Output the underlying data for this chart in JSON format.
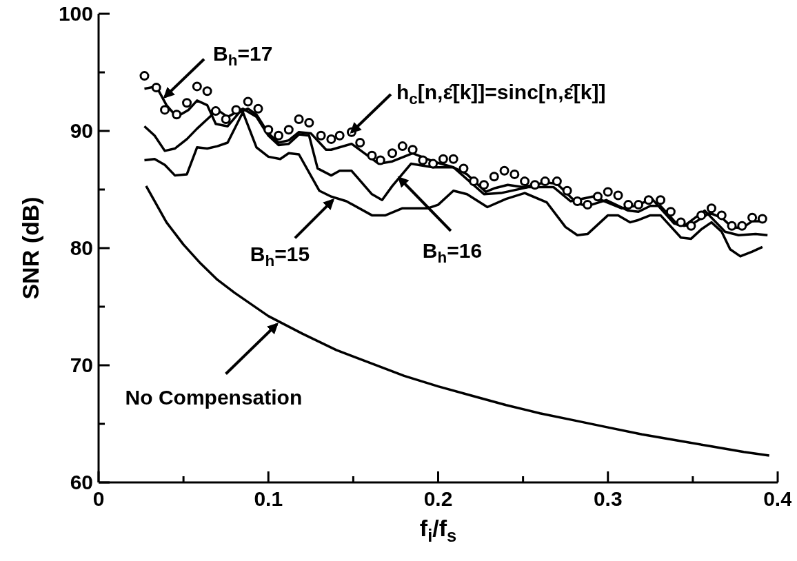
{
  "chart_data": {
    "type": "line",
    "xlabel": "f$_{i}$/f$_{s}$",
    "ylabel": "SNR (dB)",
    "xlim": [
      0,
      0.4
    ],
    "ylim": [
      60,
      100
    ],
    "xticks": [
      0,
      {
        "value": 0.05,
        "label": null
      },
      0.1,
      {
        "value": 0.15,
        "label": null
      },
      0.2,
      {
        "value": 0.25,
        "label": null
      },
      0.3,
      {
        "value": 0.35,
        "label": null
      },
      0.4
    ],
    "yticks": [
      60,
      {
        "value": 65,
        "label": null
      },
      70,
      {
        "value": 75,
        "label": null
      },
      80,
      {
        "value": 85,
        "label": null
      },
      90,
      {
        "value": 95,
        "label": null
      },
      100
    ],
    "line_style": "solid",
    "legend": false,
    "series": [
      {
        "color": "#000000",
        "x": [
          0.028,
          0.04,
          0.05,
          0.06,
          0.07,
          0.08,
          0.1,
          0.12,
          0.14,
          0.16,
          0.18,
          0.2,
          0.22,
          0.24,
          0.26,
          0.28,
          0.3,
          0.32,
          0.34,
          0.36,
          0.38,
          0.395
        ],
        "values": [
          85.3,
          82.2,
          80.3,
          78.7,
          77.3,
          76.2,
          74.2,
          72.7,
          71.3,
          70.2,
          69.1,
          68.2,
          67.4,
          66.6,
          65.9,
          65.3,
          64.7,
          64.1,
          63.6,
          63.1,
          62.6,
          62.3
        ]
      },
      {
        "color": "#000000",
        "x": [
          0.027,
          0.033,
          0.039,
          0.045,
          0.052,
          0.058,
          0.064,
          0.07,
          0.076,
          0.085,
          0.093,
          0.1,
          0.107,
          0.112,
          0.118,
          0.13,
          0.137,
          0.146,
          0.161,
          0.169,
          0.179,
          0.194,
          0.2,
          0.209,
          0.217,
          0.229,
          0.24,
          0.251,
          0.264,
          0.275,
          0.282,
          0.288,
          0.3,
          0.306,
          0.313,
          0.318,
          0.325,
          0.331,
          0.343,
          0.349,
          0.355,
          0.361,
          0.367,
          0.372,
          0.378,
          0.385,
          0.391
        ],
        "values": [
          87.5,
          87.6,
          87.1,
          86.2,
          86.3,
          88.6,
          88.5,
          88.7,
          89,
          91.6,
          88.6,
          87.8,
          87.6,
          88.1,
          88,
          84.9,
          84.4,
          84,
          82.8,
          82.8,
          83.4,
          83.4,
          83.7,
          84.9,
          84.6,
          83.5,
          84.2,
          84.7,
          83.9,
          81.8,
          81.1,
          81.2,
          82.8,
          82.8,
          82.2,
          82.4,
          82.8,
          82.8,
          80.9,
          80.8,
          81.6,
          82.2,
          81.4,
          79.9,
          79.3,
          79.7,
          80.1
        ]
      },
      {
        "color": "#000000",
        "x": [
          0.027,
          0.033,
          0.039,
          0.045,
          0.052,
          0.058,
          0.064,
          0.07,
          0.076,
          0.085,
          0.093,
          0.1,
          0.106,
          0.112,
          0.118,
          0.124,
          0.129,
          0.137,
          0.142,
          0.149,
          0.161,
          0.167,
          0.173,
          0.184,
          0.197,
          0.209,
          0.227,
          0.237,
          0.253,
          0.268,
          0.278,
          0.291,
          0.308,
          0.316,
          0.326,
          0.339,
          0.345,
          0.357,
          0.369,
          0.377,
          0.387,
          0.394
        ],
        "values": [
          90.4,
          89.6,
          88.3,
          88.5,
          89.3,
          90.2,
          91,
          91.8,
          91.2,
          91.9,
          91.2,
          89.6,
          88.8,
          88.9,
          89.7,
          89.6,
          86.8,
          86.2,
          86.6,
          86.6,
          84.6,
          84.1,
          85.3,
          87.2,
          86.9,
          86.9,
          84.6,
          84.7,
          85.2,
          85.2,
          84,
          84.4,
          83.4,
          83.6,
          84.2,
          82.1,
          81.9,
          83.2,
          81.4,
          81.1,
          81.2,
          81.1
        ]
      },
      {
        "color": "#000000",
        "x": [
          0.027,
          0.034,
          0.04,
          0.046,
          0.053,
          0.058,
          0.064,
          0.069,
          0.076,
          0.083,
          0.088,
          0.093,
          0.1,
          0.106,
          0.112,
          0.118,
          0.125,
          0.134,
          0.137,
          0.149,
          0.165,
          0.173,
          0.185,
          0.197,
          0.209,
          0.217,
          0.228,
          0.233,
          0.241,
          0.25,
          0.263,
          0.27,
          0.282,
          0.288,
          0.299,
          0.312,
          0.318,
          0.325,
          0.331,
          0.341,
          0.348,
          0.36,
          0.367,
          0.373,
          0.379,
          0.385,
          0.391
        ],
        "values": [
          93.6,
          93.8,
          92.2,
          91.2,
          91.8,
          92.6,
          92.2,
          90.6,
          90.4,
          91.6,
          91.9,
          91.4,
          89.8,
          89,
          89.2,
          89.9,
          89.8,
          88.4,
          88.4,
          88.9,
          87.2,
          87.4,
          88.1,
          87.4,
          86.9,
          86.3,
          84.8,
          85.1,
          85.4,
          85.2,
          85.6,
          85.5,
          83.8,
          83.6,
          84.1,
          83.2,
          83.1,
          83.6,
          83.6,
          82,
          81.9,
          83,
          82.6,
          81.8,
          81.7,
          82.3,
          82.3
        ]
      },
      {
        "type": "scatter",
        "marker": "circle",
        "color": "#000000",
        "x": [
          0.027,
          0.034,
          0.039,
          0.046,
          0.052,
          0.058,
          0.064,
          0.069,
          0.075,
          0.081,
          0.088,
          0.094,
          0.1,
          0.106,
          0.112,
          0.118,
          0.124,
          0.131,
          0.137,
          0.142,
          0.149,
          0.154,
          0.161,
          0.166,
          0.173,
          0.179,
          0.185,
          0.191,
          0.197,
          0.203,
          0.209,
          0.215,
          0.221,
          0.227,
          0.233,
          0.239,
          0.245,
          0.251,
          0.257,
          0.263,
          0.27,
          0.276,
          0.282,
          0.288,
          0.294,
          0.3,
          0.306,
          0.312,
          0.318,
          0.324,
          0.331,
          0.337,
          0.343,
          0.349,
          0.355,
          0.361,
          0.367,
          0.373,
          0.379,
          0.385,
          0.391
        ],
        "values": [
          94.7,
          93.7,
          91.8,
          91.4,
          92.4,
          93.8,
          93.4,
          91.7,
          91,
          91.8,
          92.5,
          91.9,
          90.1,
          89.6,
          90.1,
          91,
          90.7,
          89.6,
          89.3,
          89.6,
          89.9,
          89,
          87.9,
          87.5,
          88.1,
          88.7,
          88.4,
          87.5,
          87.2,
          87.6,
          87.6,
          86.8,
          85.7,
          85.4,
          86.1,
          86.6,
          86.3,
          85.7,
          85.4,
          85.7,
          85.7,
          84.9,
          84,
          83.7,
          84.4,
          84.8,
          84.5,
          83.7,
          83.7,
          84.1,
          84.1,
          83.1,
          82.2,
          81.9,
          82.8,
          83.4,
          82.8,
          81.9,
          81.9,
          82.6,
          82.5
        ]
      }
    ],
    "annotations": [
      {
        "text": "B$_{h}$=17",
        "x": 0.039,
        "y": 92.9
      },
      {
        "text": "h$_{c}$[n,ε̂[k]]=sinc[n,ε̂[k]]",
        "x": 0.149,
        "y": 89.9
      },
      {
        "text": "B$_{h}$=15",
        "x": 0.138,
        "y": 84.1
      },
      {
        "text": "B$_{h}$=16",
        "x": 0.177,
        "y": 86.0
      },
      {
        "text": "No Compensation",
        "x": 0.105,
        "y": 73.5
      }
    ]
  }
}
